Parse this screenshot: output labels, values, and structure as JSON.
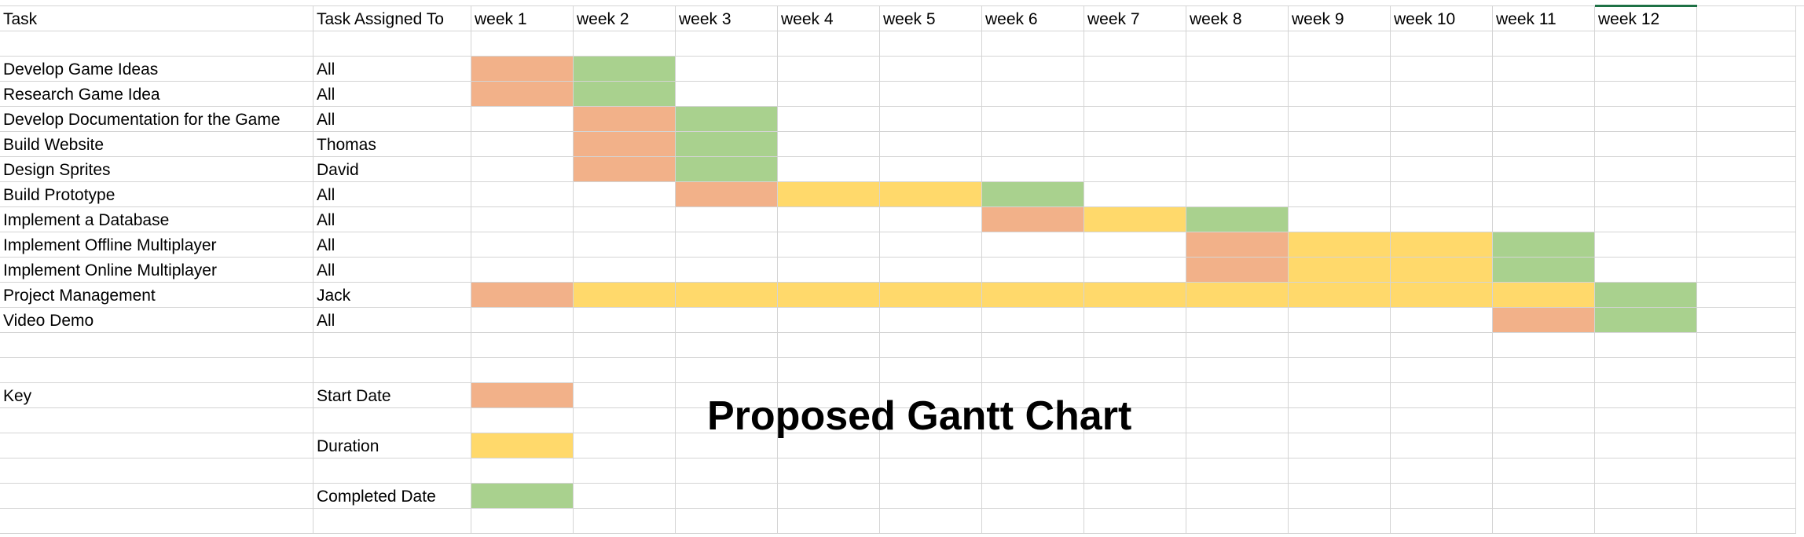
{
  "headers": [
    "Task",
    "Task Assigned To",
    "week 1",
    "week 2",
    "week 3",
    "week 4",
    "week 5",
    "week 6",
    "week 7",
    "week 8",
    "week 9",
    "week 10",
    "week 11",
    "week 12"
  ],
  "tasks": [
    {
      "name": "Develop Game Ideas",
      "assigned": "All",
      "start": [
        1
      ],
      "duration": [],
      "complete": [
        2
      ]
    },
    {
      "name": "Research Game Idea",
      "assigned": "All",
      "start": [
        1
      ],
      "duration": [],
      "complete": [
        2
      ]
    },
    {
      "name": "Develop Documentation for the Game",
      "assigned": "All",
      "start": [
        2
      ],
      "duration": [],
      "complete": [
        3
      ]
    },
    {
      "name": "Build Website",
      "assigned": "Thomas",
      "start": [
        2
      ],
      "duration": [],
      "complete": [
        3
      ]
    },
    {
      "name": "Design Sprites",
      "assigned": "David",
      "start": [
        2
      ],
      "duration": [],
      "complete": [
        3
      ]
    },
    {
      "name": "Build Prototype",
      "assigned": "All",
      "start": [
        3
      ],
      "duration": [
        4,
        5
      ],
      "complete": [
        6
      ]
    },
    {
      "name": "Implement a Database",
      "assigned": "All",
      "start": [
        6
      ],
      "duration": [
        7
      ],
      "complete": [
        8
      ]
    },
    {
      "name": "Implement Offline Multiplayer",
      "assigned": "All",
      "start": [
        8
      ],
      "duration": [
        9,
        10
      ],
      "complete": [
        11
      ]
    },
    {
      "name": "Implement Online Multiplayer",
      "assigned": "All",
      "start": [
        8
      ],
      "duration": [
        9,
        10
      ],
      "complete": [
        11
      ]
    },
    {
      "name": "Project Management",
      "assigned": "Jack",
      "start": [
        1
      ],
      "duration": [
        2,
        3,
        4,
        5,
        6,
        7,
        8,
        9,
        10,
        11
      ],
      "complete": [
        12
      ]
    },
    {
      "name": "Video Demo",
      "assigned": "All",
      "start": [
        11
      ],
      "duration": [],
      "complete": [
        12
      ]
    }
  ],
  "key": {
    "label": "Key",
    "start_label": "Start Date",
    "duration_label": "Duration",
    "complete_label": "Completed Date"
  },
  "title": "Proposed Gantt Chart",
  "colors": {
    "start": "#f2b189",
    "duration": "#ffd96b",
    "complete": "#a9d18e",
    "gridline": "#d4d4d4",
    "selection": "#1e7145"
  },
  "selected_column": "week 12"
}
